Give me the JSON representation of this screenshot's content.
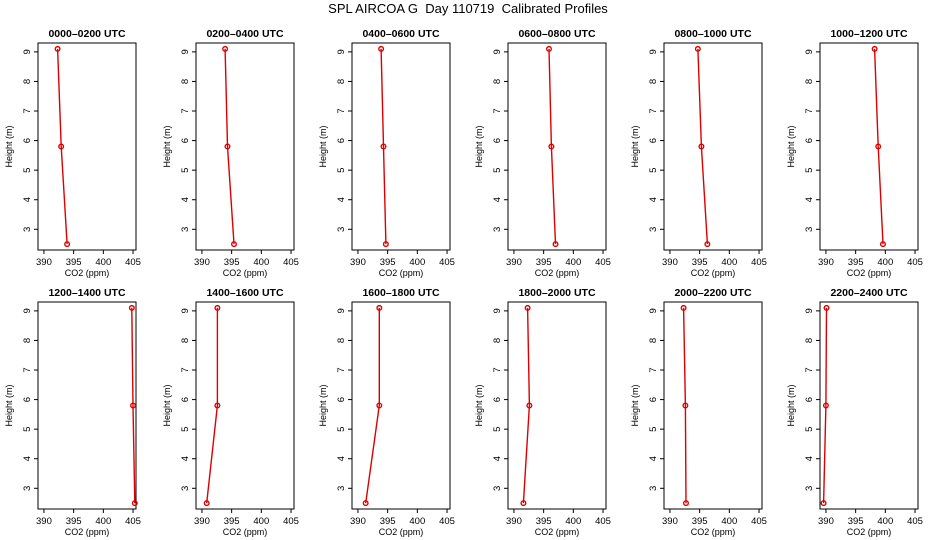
{
  "title": "SPL AIRCOA G  Day 110719  Calibrated Profiles",
  "colors": {
    "profile": "#dd0000",
    "axis": "#000000"
  },
  "chart_data": [
    {
      "type": "line",
      "title": "0000–0200 UTC",
      "xlabel": "CO2 (ppm)",
      "ylabel": "Height (m)",
      "xlim": [
        389,
        405.5
      ],
      "ylim": [
        2.3,
        9.3
      ],
      "xticks": [
        390,
        395,
        400,
        405
      ],
      "yticks": [
        3,
        4,
        5,
        6,
        7,
        8,
        9
      ],
      "x": [
        392.3,
        392.9,
        393.9
      ],
      "y": [
        9.1,
        5.8,
        2.5
      ],
      "grid": false
    },
    {
      "type": "line",
      "title": "0200–0400 UTC",
      "xlabel": "CO2 (ppm)",
      "ylabel": "Height (m)",
      "xlim": [
        389,
        405.5
      ],
      "ylim": [
        2.3,
        9.3
      ],
      "xticks": [
        390,
        395,
        400,
        405
      ],
      "yticks": [
        3,
        4,
        5,
        6,
        7,
        8,
        9
      ],
      "x": [
        393.9,
        394.3,
        395.4
      ],
      "y": [
        9.1,
        5.8,
        2.5
      ],
      "grid": false
    },
    {
      "type": "line",
      "title": "0400–0600 UTC",
      "xlabel": "CO2 (ppm)",
      "ylabel": "Height (m)",
      "xlim": [
        389,
        405.5
      ],
      "ylim": [
        2.3,
        9.3
      ],
      "xticks": [
        390,
        395,
        400,
        405
      ],
      "yticks": [
        3,
        4,
        5,
        6,
        7,
        8,
        9
      ],
      "x": [
        393.9,
        394.3,
        394.7
      ],
      "y": [
        9.1,
        5.8,
        2.5
      ],
      "grid": false
    },
    {
      "type": "line",
      "title": "0600–0800 UTC",
      "xlabel": "CO2 (ppm)",
      "ylabel": "Height (m)",
      "xlim": [
        389,
        405.5
      ],
      "ylim": [
        2.3,
        9.3
      ],
      "xticks": [
        390,
        395,
        400,
        405
      ],
      "yticks": [
        3,
        4,
        5,
        6,
        7,
        8,
        9
      ],
      "x": [
        395.9,
        396.3,
        397.0
      ],
      "y": [
        9.1,
        5.8,
        2.5
      ],
      "grid": false
    },
    {
      "type": "line",
      "title": "0800–1000 UTC",
      "xlabel": "CO2 (ppm)",
      "ylabel": "Height (m)",
      "xlim": [
        389,
        405.5
      ],
      "ylim": [
        2.3,
        9.3
      ],
      "xticks": [
        390,
        395,
        400,
        405
      ],
      "yticks": [
        3,
        4,
        5,
        6,
        7,
        8,
        9
      ],
      "x": [
        394.7,
        395.3,
        396.3
      ],
      "y": [
        9.1,
        5.8,
        2.5
      ],
      "grid": false
    },
    {
      "type": "line",
      "title": "1000–1200 UTC",
      "xlabel": "CO2 (ppm)",
      "ylabel": "Height (m)",
      "xlim": [
        389,
        405.5
      ],
      "ylim": [
        2.3,
        9.3
      ],
      "xticks": [
        390,
        395,
        400,
        405
      ],
      "yticks": [
        3,
        4,
        5,
        6,
        7,
        8,
        9
      ],
      "x": [
        398.2,
        398.8,
        399.6
      ],
      "y": [
        9.1,
        5.8,
        2.5
      ],
      "grid": false
    },
    {
      "type": "line",
      "title": "1200–1400 UTC",
      "xlabel": "CO2 (ppm)",
      "ylabel": "Height (m)",
      "xlim": [
        389,
        405.5
      ],
      "ylim": [
        2.3,
        9.3
      ],
      "xticks": [
        390,
        395,
        400,
        405
      ],
      "yticks": [
        3,
        4,
        5,
        6,
        7,
        8,
        9
      ],
      "x": [
        404.8,
        405.0,
        405.3
      ],
      "y": [
        9.1,
        5.8,
        2.5
      ],
      "grid": false
    },
    {
      "type": "line",
      "title": "1400–1600 UTC",
      "xlabel": "CO2 (ppm)",
      "ylabel": "Height (m)",
      "xlim": [
        389,
        405.5
      ],
      "ylim": [
        2.3,
        9.3
      ],
      "xticks": [
        390,
        395,
        400,
        405
      ],
      "yticks": [
        3,
        4,
        5,
        6,
        7,
        8,
        9
      ],
      "x": [
        392.6,
        392.6,
        390.8
      ],
      "y": [
        9.1,
        5.8,
        2.5
      ],
      "grid": false
    },
    {
      "type": "line",
      "title": "1600–1800 UTC",
      "xlabel": "CO2 (ppm)",
      "ylabel": "Height (m)",
      "xlim": [
        389,
        405.5
      ],
      "ylim": [
        2.3,
        9.3
      ],
      "xticks": [
        390,
        395,
        400,
        405
      ],
      "yticks": [
        3,
        4,
        5,
        6,
        7,
        8,
        9
      ],
      "x": [
        393.6,
        393.6,
        391.3
      ],
      "y": [
        9.1,
        5.8,
        2.5
      ],
      "grid": false
    },
    {
      "type": "line",
      "title": "1800–2000 UTC",
      "xlabel": "CO2 (ppm)",
      "ylabel": "Height (m)",
      "xlim": [
        389,
        405.5
      ],
      "ylim": [
        2.3,
        9.3
      ],
      "xticks": [
        390,
        395,
        400,
        405
      ],
      "yticks": [
        3,
        4,
        5,
        6,
        7,
        8,
        9
      ],
      "x": [
        392.3,
        392.6,
        391.6
      ],
      "y": [
        9.1,
        5.8,
        2.5
      ],
      "grid": false
    },
    {
      "type": "line",
      "title": "2000–2200 UTC",
      "xlabel": "CO2 (ppm)",
      "ylabel": "Height (m)",
      "xlim": [
        389,
        405.5
      ],
      "ylim": [
        2.3,
        9.3
      ],
      "xticks": [
        390,
        395,
        400,
        405
      ],
      "yticks": [
        3,
        4,
        5,
        6,
        7,
        8,
        9
      ],
      "x": [
        392.3,
        392.6,
        392.7
      ],
      "y": [
        9.1,
        5.8,
        2.5
      ],
      "grid": false
    },
    {
      "type": "line",
      "title": "2200–2400 UTC",
      "xlabel": "CO2 (ppm)",
      "ylabel": "Height (m)",
      "xlim": [
        389,
        405.5
      ],
      "ylim": [
        2.3,
        9.3
      ],
      "xticks": [
        390,
        395,
        400,
        405
      ],
      "yticks": [
        3,
        4,
        5,
        6,
        7,
        8,
        9
      ],
      "x": [
        390.1,
        390.0,
        389.6
      ],
      "y": [
        9.1,
        5.8,
        2.5
      ],
      "grid": false
    }
  ]
}
